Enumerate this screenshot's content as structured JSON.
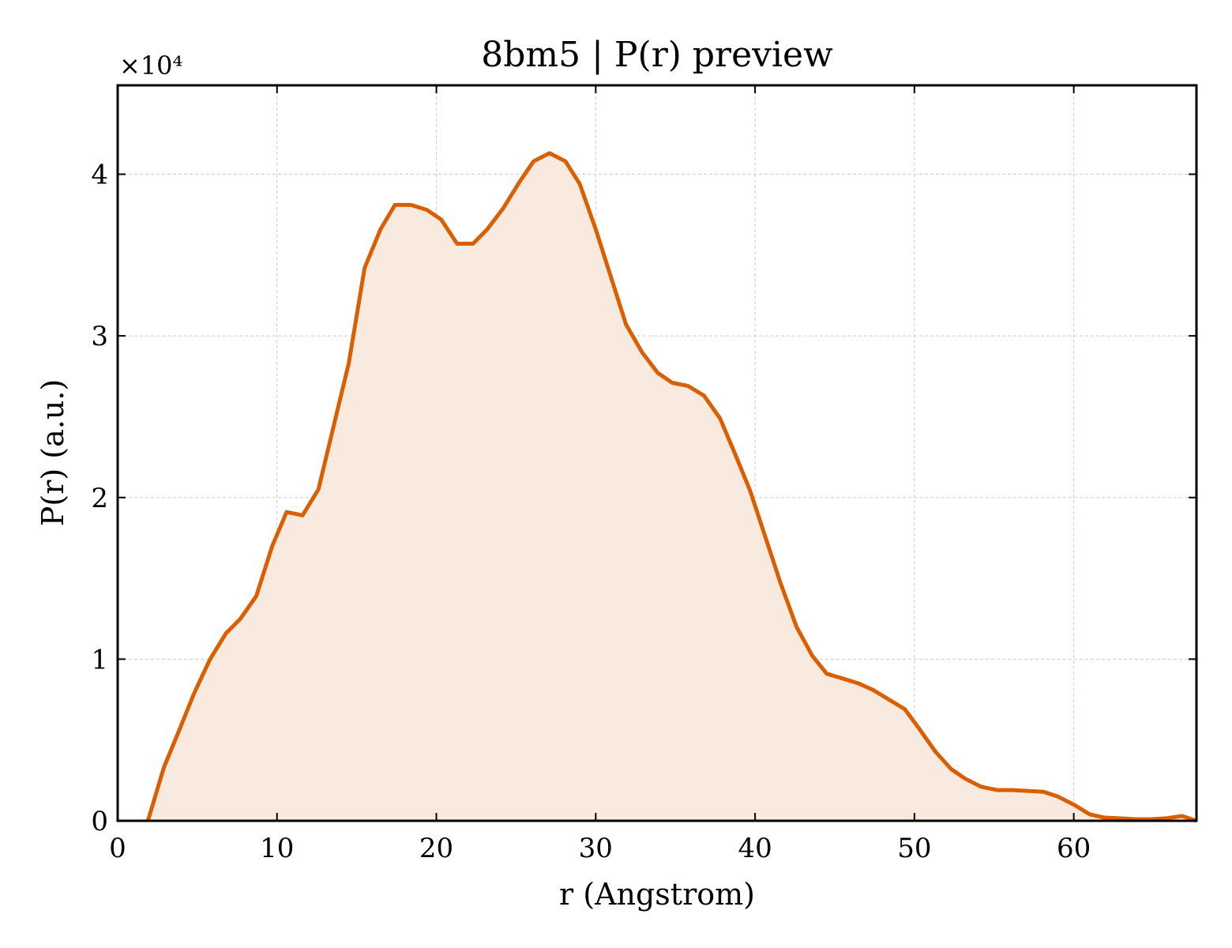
{
  "chart_data": {
    "type": "area",
    "title": "8bm5 | P(r) preview",
    "xlabel": "r (Angstrom)",
    "ylabel": "P(r) (a.u.)",
    "y_multiplier": "×10⁴",
    "xlim": [
      0,
      67.7
    ],
    "ylim": [
      0,
      4.55
    ],
    "xticks": [
      0,
      10,
      20,
      30,
      40,
      50,
      60
    ],
    "yticks": [
      0,
      1,
      2,
      3,
      4
    ],
    "grid": true,
    "line_color": "#d95f02",
    "fill_color": "#f9eadf",
    "series": [
      {
        "x": [
          1.9,
          2.9,
          3.9,
          4.8,
          5.8,
          6.8,
          7.7,
          8.7,
          9.7,
          10.6,
          11.6,
          12.6,
          13.5,
          14.5,
          15.5,
          16.5,
          17.4,
          18.4,
          19.4,
          20.3,
          21.3,
          22.3,
          23.2,
          24.2,
          25.2,
          26.1,
          27.1,
          28.1,
          29.0,
          30.0,
          31.0,
          31.9,
          32.9,
          33.9,
          34.8,
          35.8,
          36.8,
          37.8,
          38.7,
          39.7,
          40.7,
          41.6,
          42.6,
          43.6,
          44.5,
          45.5,
          46.5,
          47.4,
          48.4,
          49.4,
          50.3,
          51.3,
          52.3,
          53.2,
          54.2,
          55.2,
          56.1,
          57.1,
          58.1,
          59.0,
          60.0,
          61.0,
          61.9,
          62.9,
          63.9,
          64.8,
          65.8,
          66.8,
          67.7
        ],
        "y": [
          0.0,
          0.33,
          0.57,
          0.79,
          1.0,
          1.16,
          1.25,
          1.39,
          1.7,
          1.91,
          1.89,
          2.05,
          2.42,
          2.83,
          3.42,
          3.66,
          3.81,
          3.81,
          3.78,
          3.72,
          3.57,
          3.57,
          3.66,
          3.79,
          3.95,
          4.08,
          4.13,
          4.08,
          3.94,
          3.66,
          3.35,
          3.07,
          2.9,
          2.77,
          2.71,
          2.69,
          2.63,
          2.49,
          2.28,
          2.04,
          1.74,
          1.47,
          1.2,
          1.02,
          0.91,
          0.88,
          0.85,
          0.81,
          0.75,
          0.69,
          0.57,
          0.43,
          0.32,
          0.26,
          0.21,
          0.19,
          0.19,
          0.185,
          0.18,
          0.15,
          0.1,
          0.04,
          0.02,
          0.015,
          0.01,
          0.01,
          0.015,
          0.03,
          0.0
        ]
      }
    ]
  }
}
